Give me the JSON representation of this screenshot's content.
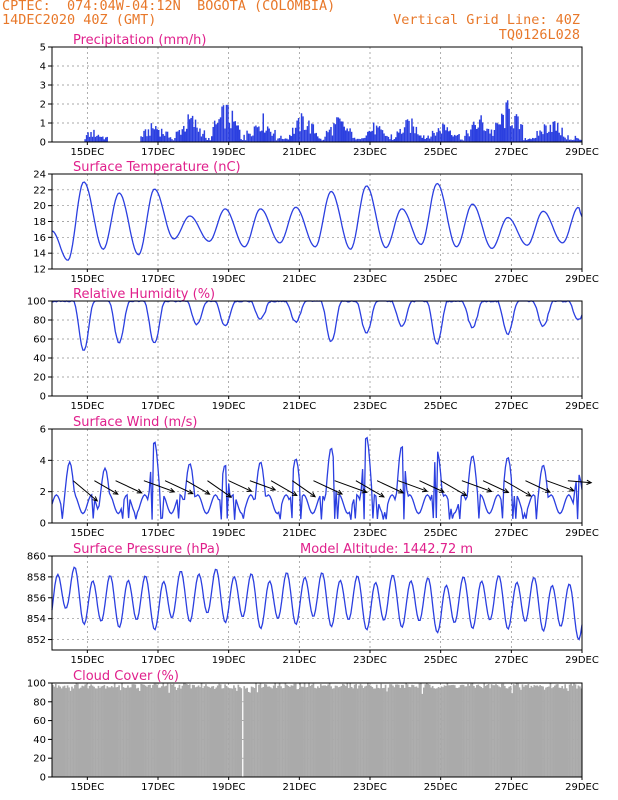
{
  "header": {
    "left_line1": "CPTEC:  074:04W-04:12N  BOGOTA (COLOMBIA)",
    "left_line2": "14DEC2020 40Z (GMT)",
    "right_line1": "Vertical Grid Line: 40Z",
    "right_line2": "TQ0126L028"
  },
  "x_tick_labels": [
    "15DEC",
    "17DEC",
    "19DEC",
    "21DEC",
    "23DEC",
    "25DEC",
    "27DEC",
    "29DEC"
  ],
  "colors": {
    "header": "#e8782a",
    "title": "#e0208c",
    "series": "#2b3fe0",
    "cloud": "#aaaaaa",
    "grid": "#8c8c8c"
  },
  "chart_data": [
    {
      "type": "bar",
      "title": "Precipitation (mm/h)",
      "ylim": [
        0,
        5
      ],
      "yticks": [
        0,
        1,
        2,
        3,
        4,
        5
      ],
      "peak_days": [
        15.15,
        16.9,
        17.9,
        18.9,
        19.9,
        21.1,
        22.1,
        23.1,
        24.1,
        25.1,
        26.1,
        26.9,
        28.1
      ],
      "peak_values": [
        0.7,
        1.2,
        1.7,
        2.3,
        1.7,
        1.7,
        1.5,
        1.1,
        1.4,
        1.3,
        1.6,
        2.4,
        1.5
      ],
      "x_day_range": [
        14.0,
        29.0
      ]
    },
    {
      "type": "line",
      "title": "Surface Temperature (nC)",
      "ylim": [
        12,
        24
      ],
      "yticks": [
        12,
        14,
        16,
        18,
        20,
        22,
        24
      ],
      "max_days": [
        14.9,
        15.9,
        16.9,
        17.9,
        18.9,
        19.9,
        20.9,
        21.9,
        22.9,
        23.9,
        24.9,
        25.9,
        26.9,
        27.9,
        28.9
      ],
      "max_values": [
        23.0,
        21.6,
        22.1,
        18.7,
        19.6,
        19.6,
        19.8,
        21.8,
        22.5,
        19.6,
        22.8,
        20.2,
        18.5,
        19.3,
        19.8
      ],
      "min_days": [
        14.45,
        15.45,
        16.45,
        17.45,
        18.45,
        19.45,
        20.45,
        21.45,
        22.45,
        23.45,
        24.45,
        25.45,
        26.45,
        27.45,
        28.45
      ],
      "min_values": [
        13.1,
        14.5,
        13.8,
        15.8,
        15.5,
        14.8,
        15.3,
        14.8,
        14.5,
        14.7,
        15.1,
        14.8,
        14.6,
        15.0,
        15.3
      ]
    },
    {
      "type": "line",
      "title": "Relative Humidity (%)",
      "ylim": [
        0,
        100
      ],
      "yticks": [
        0,
        20,
        40,
        60,
        80,
        100
      ],
      "dip_days": [
        14.9,
        15.9,
        16.9,
        18.1,
        18.9,
        19.9,
        20.9,
        21.9,
        22.9,
        23.9,
        24.9,
        25.9,
        26.9,
        27.9,
        28.9
      ],
      "dip_values": [
        48,
        56,
        55,
        75,
        74,
        81,
        78,
        57,
        66,
        73,
        55,
        72,
        65,
        73,
        80
      ]
    },
    {
      "type": "line",
      "title": "Surface Wind (m/s)",
      "ylim": [
        0,
        6
      ],
      "yticks": [
        0,
        2,
        4,
        6
      ],
      "peak_days": [
        14.5,
        15.5,
        16.9,
        17.9,
        18.9,
        19.9,
        20.9,
        21.9,
        22.9,
        23.9,
        24.9,
        25.9,
        26.9,
        27.9,
        28.9
      ],
      "peak_values": [
        3.6,
        3.2,
        4.9,
        3.5,
        3.4,
        3.6,
        3.8,
        4.5,
        5.2,
        4.6,
        4.3,
        4.0,
        3.9,
        3.4,
        2.8
      ],
      "vector_days": [
        14.6,
        15.2,
        15.8,
        16.6,
        17.2,
        17.8,
        18.4,
        19.0,
        19.6,
        20.2,
        20.8,
        21.4,
        22.0,
        22.6,
        23.2,
        23.8,
        24.4,
        25.0,
        25.6,
        26.2,
        26.8,
        27.4,
        28.0,
        28.6
      ],
      "vector_speeds": [
        3.5,
        3.0,
        3.2,
        3.6,
        3.4,
        3.0,
        3.2,
        2.8,
        3.0,
        3.3,
        3.1,
        3.5,
        3.8,
        3.6,
        3.2,
        3.4,
        3.0,
        3.3,
        3.5,
        3.1,
        3.4,
        3.0,
        3.2,
        2.6
      ],
      "vector_directions_deg": [
        130,
        120,
        115,
        110,
        115,
        120,
        125,
        115,
        110,
        120,
        125,
        115,
        110,
        120,
        115,
        110,
        115,
        120,
        110,
        115,
        120,
        115,
        110,
        95
      ]
    },
    {
      "type": "line",
      "title": "Surface Pressure (hPa)",
      "annotation": "Model Altitude: 1442.72 m",
      "ylim": [
        851,
        860
      ],
      "yticks": [
        852,
        854,
        856,
        858,
        860
      ],
      "trend_days": [
        14.0,
        14.4,
        15.3,
        16.0,
        17.0,
        18.0,
        19.0,
        20.0,
        21.0,
        22.0,
        23.0,
        24.0,
        25.0,
        26.0,
        27.0,
        28.0,
        28.9
      ],
      "trend_values": [
        856.0,
        856.8,
        855.5,
        855.8,
        855.5,
        856.4,
        856.2,
        855.6,
        856.1,
        855.8,
        855.5,
        855.8,
        855.2,
        855.7,
        855.6,
        855.4,
        854.6
      ],
      "diurnal_amplitude_hPa": 2.2
    },
    {
      "type": "bar",
      "title": "Cloud Cover (%)",
      "ylim": [
        0,
        100
      ],
      "yticks": [
        0,
        20,
        40,
        60,
        80,
        100
      ],
      "typical_value": 97,
      "gap_day": 19.38
    }
  ]
}
